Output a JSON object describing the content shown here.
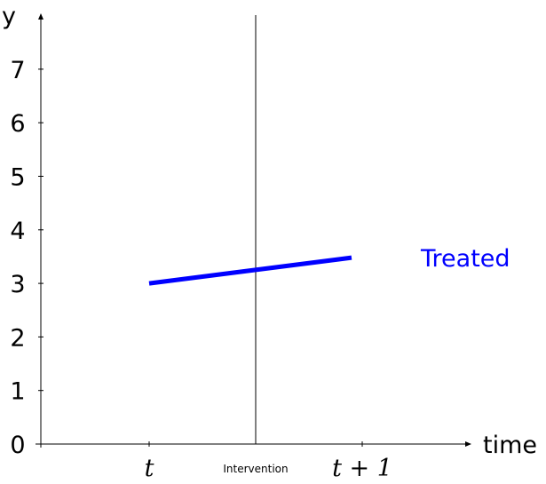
{
  "chart_data": {
    "type": "line",
    "xlabel": "time",
    "ylabel": "y",
    "ylim": [
      0,
      7.8
    ],
    "yticks": [
      0,
      1,
      2,
      3,
      4,
      5,
      6,
      7
    ],
    "xticks": [
      {
        "pos": 0,
        "label": "t"
      },
      {
        "pos": 1,
        "label": "t + 1"
      }
    ],
    "xlim": [
      -1,
      2
    ],
    "vline": {
      "x": 0.5,
      "label": "Intervention"
    },
    "grid": false,
    "series": [
      {
        "name": "Treated",
        "color": "#0000ff",
        "x": [
          0,
          0.95
        ],
        "y": [
          3.0,
          3.48
        ]
      }
    ]
  }
}
